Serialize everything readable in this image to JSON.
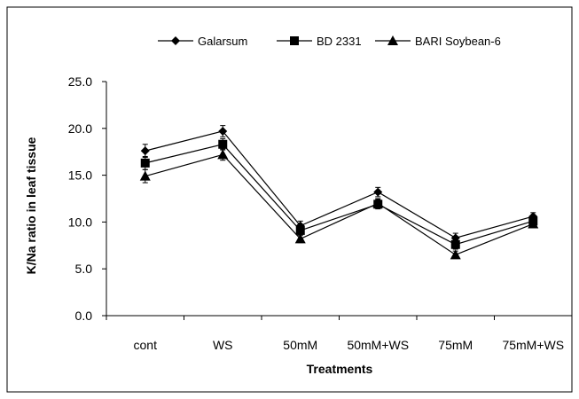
{
  "chart_data": {
    "type": "line",
    "title": "",
    "xlabel": "Treatments",
    "ylabel": "K/Na ratio in leaf tissue",
    "categories": [
      "cont",
      "WS",
      "50mM",
      "50mM+WS",
      "75mM",
      "75mM+WS"
    ],
    "ylim": [
      0,
      25
    ],
    "yticks": [
      "0.0",
      "5.0",
      "10.0",
      "15.0",
      "20.0",
      "25.0"
    ],
    "grid": false,
    "legend_position": "top",
    "series": [
      {
        "name": "Galarsum",
        "marker": "diamond",
        "color": "#000000",
        "values": [
          17.6,
          19.7,
          9.6,
          13.2,
          8.3,
          10.6
        ],
        "errors": [
          0.7,
          0.6,
          0.5,
          0.5,
          0.5,
          0.4
        ]
      },
      {
        "name": "BD 2331",
        "marker": "square",
        "color": "#000000",
        "values": [
          16.3,
          18.3,
          9.1,
          11.9,
          7.6,
          10.1
        ],
        "errors": [
          0.7,
          0.6,
          0.5,
          0.5,
          0.5,
          0.4
        ]
      },
      {
        "name": "BARI Soybean-6",
        "marker": "triangle",
        "color": "#000000",
        "values": [
          14.9,
          17.2,
          8.2,
          12.0,
          6.5,
          9.8
        ],
        "errors": [
          0.7,
          0.6,
          0.4,
          0.5,
          0.4,
          0.4
        ]
      }
    ]
  }
}
